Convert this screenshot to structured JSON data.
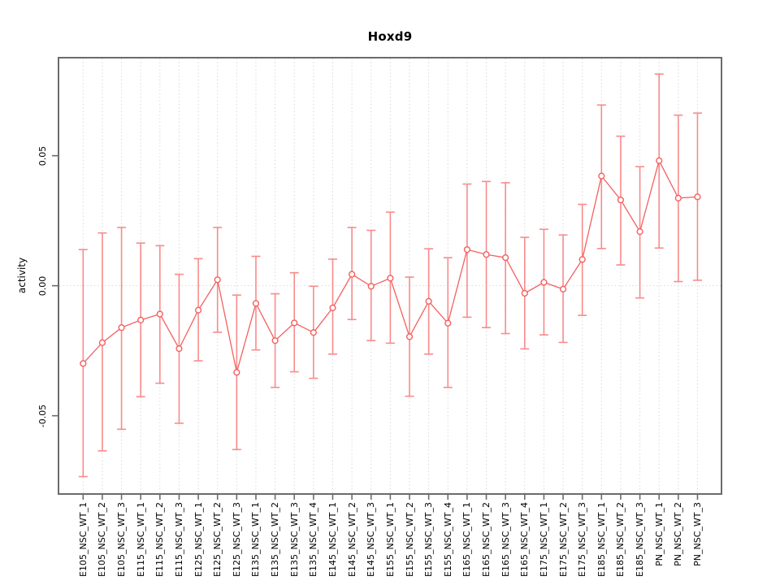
{
  "window": {
    "title": "Hoxd9"
  },
  "chart_data": {
    "type": "line",
    "subtype": "points-with-error-bars",
    "title": "Hoxd9",
    "xlabel": "",
    "ylabel": "activity",
    "legend": "none",
    "grid": "vertical dotted line at each category; horizontal dotted line at y=0",
    "ylim": [
      -0.0801,
      0.0877
    ],
    "yticks": [
      {
        "value": 0.05,
        "label": "0.05"
      },
      {
        "value": 0.0,
        "label": "0.00"
      },
      {
        "value": -0.05,
        "label": "-0.05"
      }
    ],
    "categories": [
      "E105_NSC_WT_1",
      "E105_NSC_WT_2",
      "E105_NSC_WT_3",
      "E115_NSC_WT_1",
      "E115_NSC_WT_2",
      "E115_NSC_WT_3",
      "E125_NSC_WT_1",
      "E125_NSC_WT_2",
      "E125_NSC_WT_3",
      "E135_NSC_WT_1",
      "E135_NSC_WT_2",
      "E135_NSC_WT_3",
      "E135_NSC_WT_4",
      "E145_NSC_WT_1",
      "E145_NSC_WT_2",
      "E145_NSC_WT_3",
      "E155_NSC_WT_1",
      "E155_NSC_WT_2",
      "E155_NSC_WT_3",
      "E155_NSC_WT_4",
      "E165_NSC_WT_1",
      "E165_NSC_WT_2",
      "E165_NSC_WT_3",
      "E165_NSC_WT_4",
      "E175_NSC_WT_1",
      "E175_NSC_WT_2",
      "E175_NSC_WT_3",
      "E185_NSC_WT_1",
      "E185_NSC_WT_2",
      "E185_NSC_WT_3",
      "PN_NSC_WT_1",
      "PN_NSC_WT_2",
      "PN_NSC_WT_3"
    ],
    "series": [
      {
        "name": "activity",
        "values": [
          -0.0299,
          -0.0219,
          -0.0161,
          -0.0132,
          -0.0109,
          -0.0242,
          -0.0094,
          0.0023,
          -0.0333,
          -0.0068,
          -0.0211,
          -0.0143,
          -0.018,
          -0.0085,
          0.0044,
          -0.0002,
          0.0029,
          -0.0196,
          -0.006,
          -0.0144,
          0.0139,
          0.012,
          0.0108,
          -0.0029,
          0.0013,
          -0.0013,
          0.0101,
          0.0422,
          0.033,
          0.0208,
          0.0481,
          0.0337,
          0.0342
        ],
        "upper": [
          0.0139,
          0.0203,
          0.0224,
          0.0164,
          0.0154,
          0.0044,
          0.0104,
          0.0224,
          -0.0036,
          0.0113,
          -0.0031,
          0.005,
          -0.0002,
          0.0102,
          0.0224,
          0.0213,
          0.0283,
          0.0033,
          0.0142,
          0.0108,
          0.0391,
          0.0401,
          0.0396,
          0.0186,
          0.0217,
          0.0195,
          0.0313,
          0.0695,
          0.0575,
          0.0458,
          0.0814,
          0.0656,
          0.0664
        ],
        "lower": [
          -0.0734,
          -0.0635,
          -0.0552,
          -0.0427,
          -0.0375,
          -0.0529,
          -0.0289,
          -0.0179,
          -0.063,
          -0.0247,
          -0.0391,
          -0.0331,
          -0.0356,
          -0.0263,
          -0.013,
          -0.0211,
          -0.0221,
          -0.0425,
          -0.0263,
          -0.0391,
          -0.0121,
          -0.0161,
          -0.0184,
          -0.0243,
          -0.0189,
          -0.0218,
          -0.0114,
          0.0143,
          0.008,
          -0.0047,
          0.0145,
          0.0016,
          0.0021
        ]
      }
    ],
    "colors": {
      "error_bar": "#f88b8b",
      "point_line": "#f55f5f",
      "grid": "#d9d9d9",
      "box": "#6b6b6b",
      "tick": "#6b6b6b",
      "text": "#000000"
    }
  }
}
